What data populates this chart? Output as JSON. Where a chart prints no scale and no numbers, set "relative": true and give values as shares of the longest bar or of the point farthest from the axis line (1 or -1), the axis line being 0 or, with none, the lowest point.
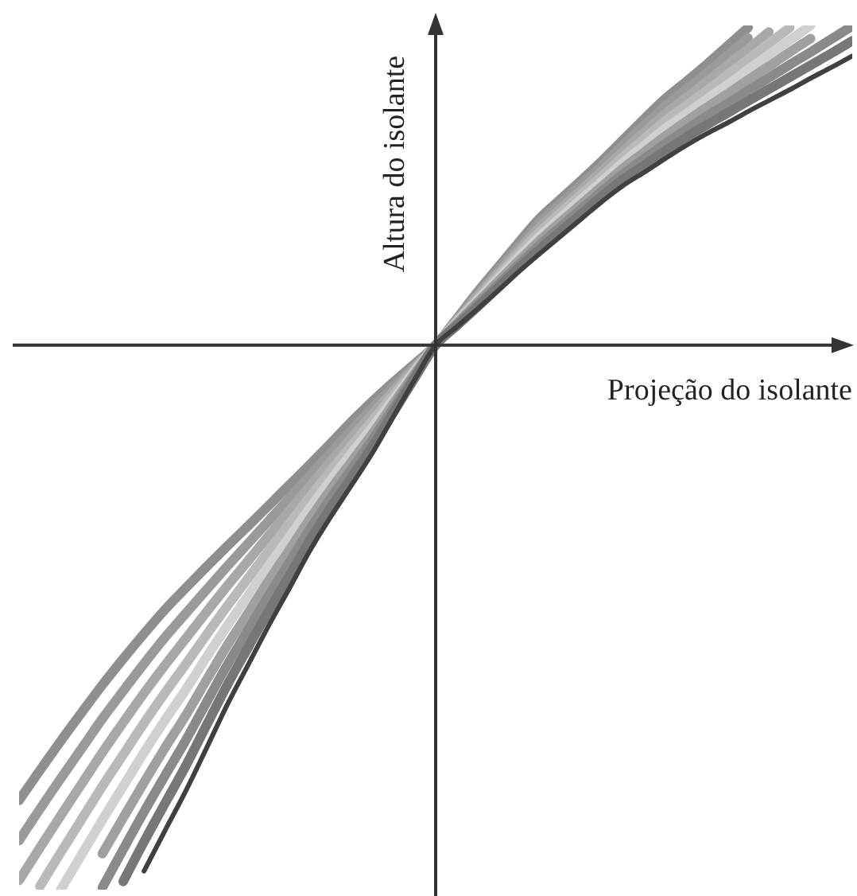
{
  "chart_data": {
    "type": "line",
    "xlabel": "Projeção do isolante",
    "ylabel": "Altura do isolante",
    "relative": true,
    "marker": "none",
    "line_style": "solid",
    "categories": [
      null,
      null,
      null,
      null,
      null,
      null,
      null,
      null,
      null,
      null,
      null,
      null,
      null,
      null,
      null,
      null,
      null,
      null,
      null,
      null,
      null,
      null,
      null,
      null,
      null,
      null,
      null,
      null,
      null,
      null,
      null,
      null,
      null,
      null,
      null,
      null,
      null,
      null,
      null,
      null,
      null
    ],
    "series": [
      {
        "color": "#8f8f8f",
        "values": [
          -0.836,
          -0.781,
          -0.727,
          -0.675,
          -0.624,
          -0.576,
          -0.53,
          -0.486,
          -0.446,
          -0.407,
          -0.369,
          -0.332,
          -0.294,
          -0.256,
          -0.218,
          -0.179,
          -0.139,
          -0.102,
          -0.067,
          -0.034,
          0,
          0.048,
          0.097,
          0.143,
          0.189,
          0.233,
          0.268,
          0.303,
          0.339,
          0.377,
          0.415,
          0.452,
          0.483,
          0.515,
          0.549,
          0.583,
          null,
          null,
          null,
          null,
          null
        ]
      },
      {
        "color": "#9a9a9a",
        "values": [
          -0.91,
          -0.852,
          -0.796,
          -0.741,
          -0.686,
          -0.635,
          -0.585,
          -0.537,
          -0.493,
          -0.449,
          -0.406,
          -0.364,
          -0.322,
          -0.28,
          -0.238,
          -0.196,
          -0.154,
          -0.114,
          -0.075,
          -0.038,
          0,
          0.046,
          0.093,
          0.138,
          0.182,
          0.225,
          0.26,
          0.294,
          0.33,
          0.367,
          0.403,
          0.438,
          0.469,
          0.499,
          0.532,
          0.564,
          null,
          null,
          null,
          null,
          null
        ]
      },
      {
        "color": "#a8a8a8",
        "values": [
          -0.983,
          -0.923,
          -0.864,
          -0.806,
          -0.748,
          -0.693,
          -0.639,
          -0.588,
          -0.539,
          -0.49,
          -0.442,
          -0.396,
          -0.349,
          -0.303,
          -0.257,
          -0.212,
          -0.168,
          -0.125,
          -0.083,
          -0.041,
          0,
          0.044,
          0.089,
          0.132,
          0.175,
          0.216,
          0.251,
          0.285,
          0.32,
          0.356,
          0.39,
          0.424,
          0.454,
          0.483,
          0.514,
          0.544,
          0.575,
          null,
          null,
          null,
          null
        ]
      },
      {
        "color": "#b9b9b9",
        "values": [
          null,
          -0.994,
          -0.932,
          -0.871,
          -0.81,
          -0.752,
          -0.694,
          -0.639,
          -0.586,
          -0.532,
          -0.479,
          -0.428,
          -0.377,
          -0.327,
          -0.277,
          -0.229,
          -0.183,
          -0.137,
          -0.091,
          -0.045,
          0,
          0.043,
          0.085,
          0.127,
          0.169,
          0.208,
          0.243,
          0.277,
          0.311,
          0.346,
          0.378,
          0.411,
          0.439,
          0.467,
          0.496,
          0.525,
          0.554,
          0.583,
          null,
          null,
          null
        ]
      },
      {
        "color": "#d0d0d0",
        "values": [
          null,
          null,
          -1,
          -0.936,
          -0.872,
          -0.81,
          -0.748,
          -0.689,
          -0.633,
          -0.573,
          -0.515,
          -0.46,
          -0.404,
          -0.351,
          -0.297,
          -0.246,
          -0.197,
          -0.149,
          -0.098,
          -0.048,
          0,
          0.041,
          0.081,
          0.122,
          0.162,
          0.2,
          0.234,
          0.268,
          0.301,
          0.335,
          0.366,
          0.397,
          0.424,
          0.451,
          0.478,
          0.506,
          0.533,
          0.56,
          0.587,
          null,
          null
        ]
      },
      {
        "color": "#a0a0a0",
        "values": [
          null,
          null,
          null,
          null,
          -0.934,
          -0.868,
          -0.803,
          -0.74,
          -0.68,
          -0.615,
          -0.551,
          -0.492,
          -0.432,
          -0.375,
          -0.317,
          -0.263,
          -0.212,
          -0.161,
          -0.106,
          -0.052,
          0,
          0.039,
          0.078,
          0.117,
          0.155,
          0.192,
          0.226,
          0.259,
          0.292,
          0.325,
          0.354,
          0.383,
          0.41,
          0.436,
          0.461,
          0.487,
          0.512,
          0.538,
          0.563,
          null,
          null
        ]
      },
      {
        "color": "#8a8a8a",
        "values": [
          null,
          null,
          null,
          null,
          -0.996,
          -0.926,
          -0.857,
          -0.791,
          -0.726,
          -0.656,
          -0.587,
          -0.523,
          -0.459,
          -0.398,
          -0.336,
          -0.279,
          -0.226,
          -0.172,
          -0.114,
          -0.056,
          0,
          0.037,
          0.074,
          0.111,
          0.148,
          0.184,
          0.217,
          0.25,
          0.283,
          0.314,
          0.342,
          0.369,
          0.395,
          0.42,
          0.443,
          0.467,
          0.491,
          0.515,
          0.538,
          0.562,
          0.586
        ]
      },
      {
        "color": "#777777",
        "values": [
          null,
          null,
          null,
          null,
          null,
          -0.985,
          -0.912,
          -0.842,
          -0.773,
          -0.698,
          -0.624,
          -0.555,
          -0.487,
          -0.422,
          -0.356,
          -0.296,
          -0.241,
          -0.184,
          -0.122,
          -0.06,
          0,
          0.035,
          0.07,
          0.106,
          0.142,
          0.176,
          0.209,
          0.241,
          0.274,
          0.304,
          0.33,
          0.356,
          0.381,
          0.404,
          0.426,
          0.448,
          0.47,
          0.492,
          0.514,
          0.536,
          0.559
        ]
      },
      {
        "color": "#404040",
        "values": [
          null,
          null,
          null,
          null,
          null,
          null,
          -0.966,
          -0.892,
          -0.819,
          -0.74,
          -0.66,
          -0.587,
          -0.514,
          -0.445,
          -0.375,
          -0.313,
          -0.255,
          -0.196,
          -0.129,
          -0.063,
          0,
          0.033,
          0.066,
          0.1,
          0.135,
          0.168,
          0.2,
          0.232,
          0.264,
          0.293,
          0.317,
          0.342,
          0.366,
          0.388,
          0.408,
          0.429,
          0.449,
          0.469,
          0.49,
          0.51,
          0.531
        ]
      }
    ]
  }
}
